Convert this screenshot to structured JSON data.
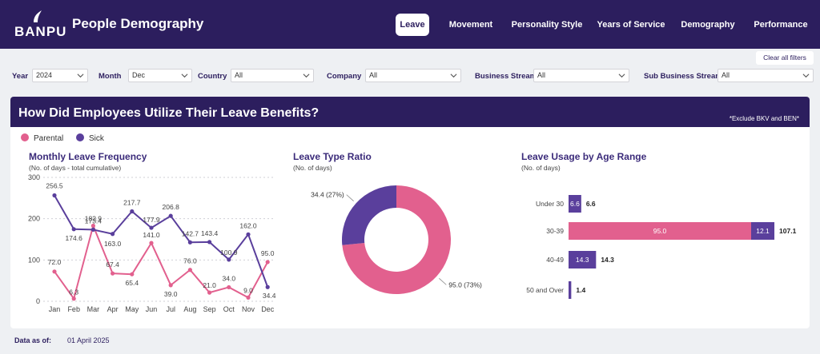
{
  "header": {
    "logo_text": "BANPU",
    "app_title": "People Demography",
    "tabs": [
      {
        "label": "Leave",
        "active": true
      },
      {
        "label": "Movement",
        "active": false
      },
      {
        "label": "Personality Style",
        "active": false
      },
      {
        "label": "Years of Service",
        "active": false
      },
      {
        "label": "Demography",
        "active": false
      },
      {
        "label": "Performance",
        "active": false
      }
    ]
  },
  "filters": {
    "clear_label": "Clear all filters",
    "items": [
      {
        "label": "Year",
        "value": "2024"
      },
      {
        "label": "Month",
        "value": "Dec"
      },
      {
        "label": "Country",
        "value": "All"
      },
      {
        "label": "Company",
        "value": "All"
      },
      {
        "label": "Business Stream",
        "value": "All"
      },
      {
        "label": "Sub Business Stream",
        "value": "All"
      }
    ]
  },
  "card": {
    "title": "How Did Employees Utilize Their Leave Benefits?",
    "note": "*Exclude BKV and BEN*",
    "legend": [
      {
        "name": "Parental",
        "color": "#e2608e"
      },
      {
        "name": "Sick",
        "color": "#5a3f9c"
      }
    ]
  },
  "colors": {
    "parental": "#e2608e",
    "sick": "#5a3f9c",
    "header": "#2c1e5e"
  },
  "chart_data": [
    {
      "type": "line",
      "title": "Monthly Leave Frequency",
      "subtitle": "(No. of days - total cumulative)",
      "categories": [
        "Jan",
        "Feb",
        "Mar",
        "Apr",
        "May",
        "Jun",
        "Jul",
        "Aug",
        "Sep",
        "Oct",
        "Nov",
        "Dec"
      ],
      "yticks": [
        0,
        100,
        200,
        300
      ],
      "ylim": [
        0,
        300
      ],
      "series": [
        {
          "name": "Parental",
          "values": [
            72.0,
            6.3,
            182.9,
            67.4,
            65.4,
            141.0,
            39.0,
            76.0,
            21.0,
            34.0,
            9.0,
            95.0
          ]
        },
        {
          "name": "Sick",
          "values": [
            256.5,
            174.6,
            173.4,
            163.0,
            217.7,
            177.9,
            206.8,
            142.7,
            143.4,
            100.9,
            162.0,
            34.4
          ]
        }
      ]
    },
    {
      "type": "pie",
      "title": "Leave Type Ratio",
      "subtitle": "(No. of days)",
      "slices": [
        {
          "name": "Sick",
          "value": 34.4,
          "label": "34.4 (27%)"
        },
        {
          "name": "Parental",
          "value": 95.0,
          "label": "95.0 (73%)"
        }
      ]
    },
    {
      "type": "bar",
      "title": "Leave Usage by Age Range",
      "subtitle": "(No. of days)",
      "categories": [
        "Under 30",
        "30-39",
        "40-49",
        "50 and Over"
      ],
      "series": [
        {
          "name": "Parental",
          "values": [
            0,
            95.0,
            0,
            0
          ]
        },
        {
          "name": "Sick",
          "values": [
            6.6,
            12.1,
            14.3,
            1.4
          ]
        }
      ],
      "totals": [
        "6.6",
        "107.1",
        "14.3",
        "1.4"
      ]
    }
  ],
  "footer": {
    "label": "Data as of:",
    "value": "01 April 2025"
  }
}
